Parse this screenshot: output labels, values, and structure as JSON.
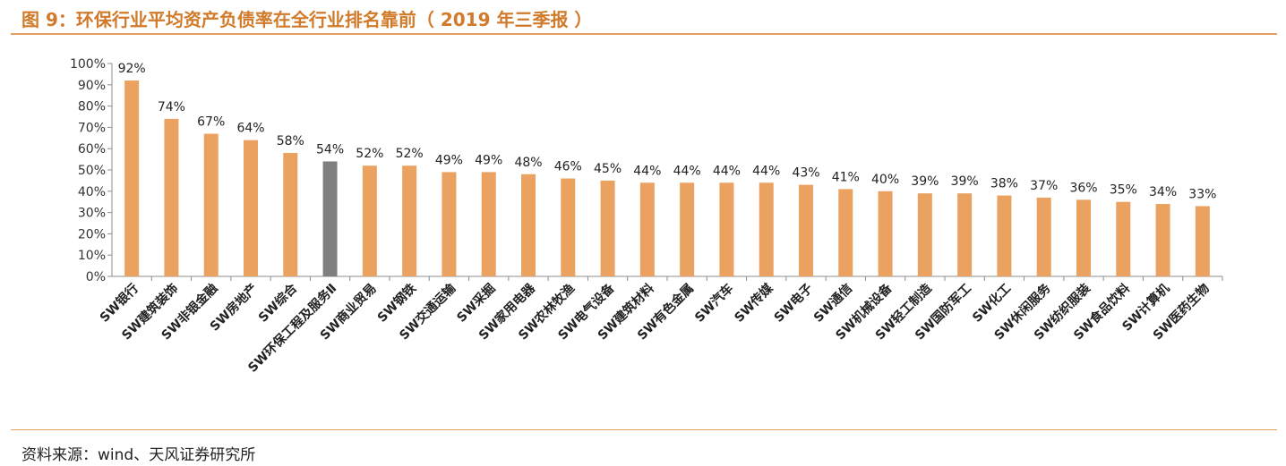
{
  "header": {
    "title": "图 9：环保行业平均资产负债率在全行业排名靠前（ 2019 年三季报 ）"
  },
  "footer": {
    "source": "资料来源：wind、天风证券研究所"
  },
  "colors": {
    "bar": "#EBA260",
    "highlight_bar": "#7F7F7F",
    "rule": "#E3A05E",
    "title": "#D07A2A"
  },
  "chart_data": {
    "type": "bar",
    "categories": [
      "SW银行",
      "SW建筑装饰",
      "SW非银金融",
      "SW房地产",
      "SW综合",
      "SW环保工程及服务Ⅱ",
      "SW商业贸易",
      "SW钢铁",
      "SW交通运输",
      "SW采掘",
      "SW家用电器",
      "SW农林牧渔",
      "SW电气设备",
      "SW建筑材料",
      "SW有色金属",
      "SW汽车",
      "SW传媒",
      "SW电子",
      "SW通信",
      "SW机械设备",
      "SW轻工制造",
      "SW国防军工",
      "SW化工",
      "SW休闲服务",
      "SW纺织服装",
      "SW食品饮料",
      "SW计算机",
      "SW医药生物"
    ],
    "values": [
      92,
      74,
      67,
      64,
      58,
      54,
      52,
      52,
      49,
      49,
      48,
      46,
      45,
      44,
      44,
      44,
      44,
      43,
      41,
      40,
      39,
      39,
      38,
      37,
      36,
      35,
      34,
      33
    ],
    "value_labels": [
      "92%",
      "74%",
      "67%",
      "64%",
      "58%",
      "54%",
      "52%",
      "52%",
      "49%",
      "49%",
      "48%",
      "46%",
      "45%",
      "44%",
      "44%",
      "44%",
      "44%",
      "43%",
      "41%",
      "40%",
      "39%",
      "39%",
      "38%",
      "37%",
      "36%",
      "35%",
      "34%",
      "33%"
    ],
    "highlight_index": 5,
    "yticks": [
      "0%",
      "10%",
      "20%",
      "30%",
      "40%",
      "50%",
      "60%",
      "70%",
      "80%",
      "90%",
      "100%"
    ],
    "ylim": [
      0,
      100
    ],
    "grid": false,
    "legend": "none"
  }
}
